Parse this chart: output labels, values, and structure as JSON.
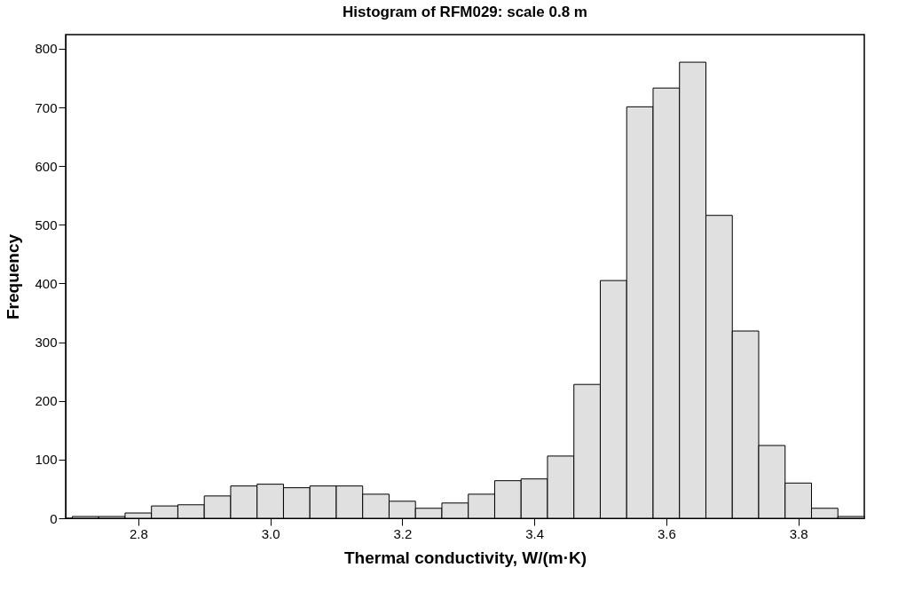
{
  "chart_data": {
    "type": "histogram",
    "title": "Histogram of RFM029: scale 0.8 m",
    "xlabel": "Thermal conductivity, W/(m·K)",
    "ylabel": "Frequency",
    "bins": [
      2.7,
      2.74,
      2.78,
      2.82,
      2.86,
      2.9,
      2.94,
      2.98,
      3.02,
      3.06,
      3.1,
      3.14,
      3.18,
      3.22,
      3.26,
      3.3,
      3.34,
      3.38,
      3.42,
      3.46,
      3.5,
      3.54,
      3.58,
      3.62,
      3.66,
      3.7,
      3.74,
      3.78,
      3.82,
      3.86,
      3.9
    ],
    "values": [
      3,
      3,
      9,
      21,
      23,
      38,
      55,
      58,
      52,
      55,
      55,
      41,
      29,
      17,
      26,
      41,
      64,
      67,
      106,
      228,
      405,
      701,
      733,
      777,
      516,
      319,
      124,
      60,
      17,
      3
    ],
    "color": "#e0e0e0",
    "xlim": [
      2.69,
      3.9
    ],
    "xticks": [
      2.8,
      {
        "value": 3.0,
        "label": "3.0"
      },
      3.2,
      3.4,
      3.6,
      3.8
    ],
    "ylim": [
      0,
      824
    ],
    "yticks": [
      0,
      100,
      200,
      300,
      400,
      500,
      600,
      700,
      800
    ],
    "grid": false
  }
}
